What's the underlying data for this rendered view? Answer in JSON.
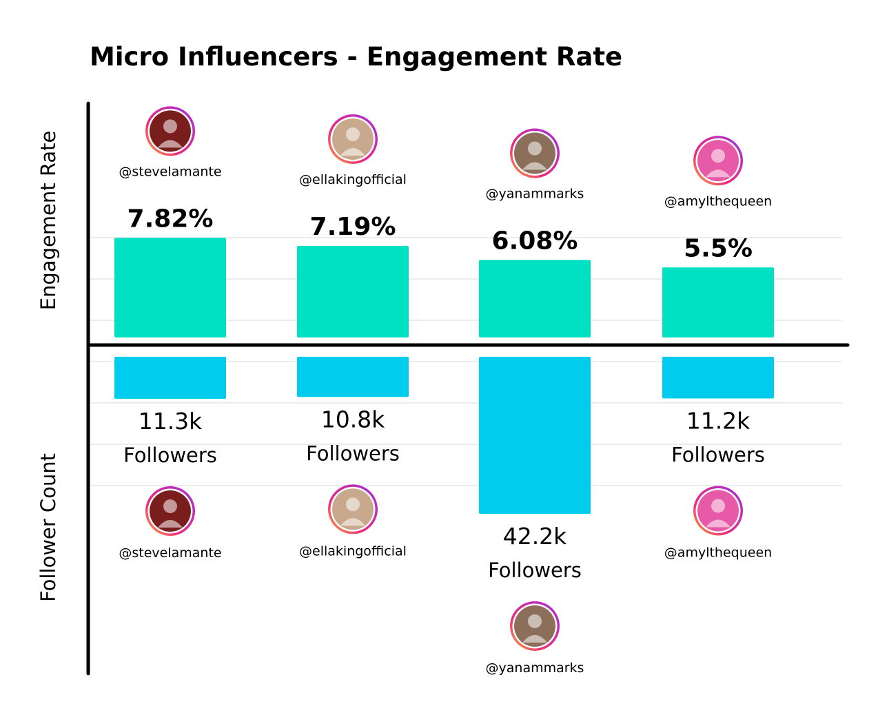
{
  "chart_data": {
    "type": "bar",
    "title": "Micro Influencers - Engagement Rate",
    "layout": "mirrored (engagement above baseline, followers below)",
    "top_axis_label": "Engagement Rate",
    "bottom_axis_label": "Follower Count",
    "categories": [
      "@stevelamante",
      "@ellakingofficial",
      "@yanammarks",
      "@amylthequeen"
    ],
    "series": [
      {
        "name": "Engagement Rate",
        "unit": "%",
        "color": "#00E0C2",
        "values": [
          7.82,
          7.19,
          6.08,
          5.5
        ],
        "labels": [
          "7.82%",
          "7.19%",
          "6.08%",
          "5.5%"
        ]
      },
      {
        "name": "Follower Count",
        "unit": "followers",
        "color": "#00CCEE",
        "values": [
          11300,
          10800,
          42200,
          11200
        ],
        "labels": [
          "11.3k",
          "10.8k",
          "42.2k",
          "11.2k"
        ],
        "suffix": "Followers"
      }
    ],
    "avatar_colors": [
      "#7a1d1d",
      "#c9a98e",
      "#8b6f5a",
      "#e75aa8"
    ]
  }
}
